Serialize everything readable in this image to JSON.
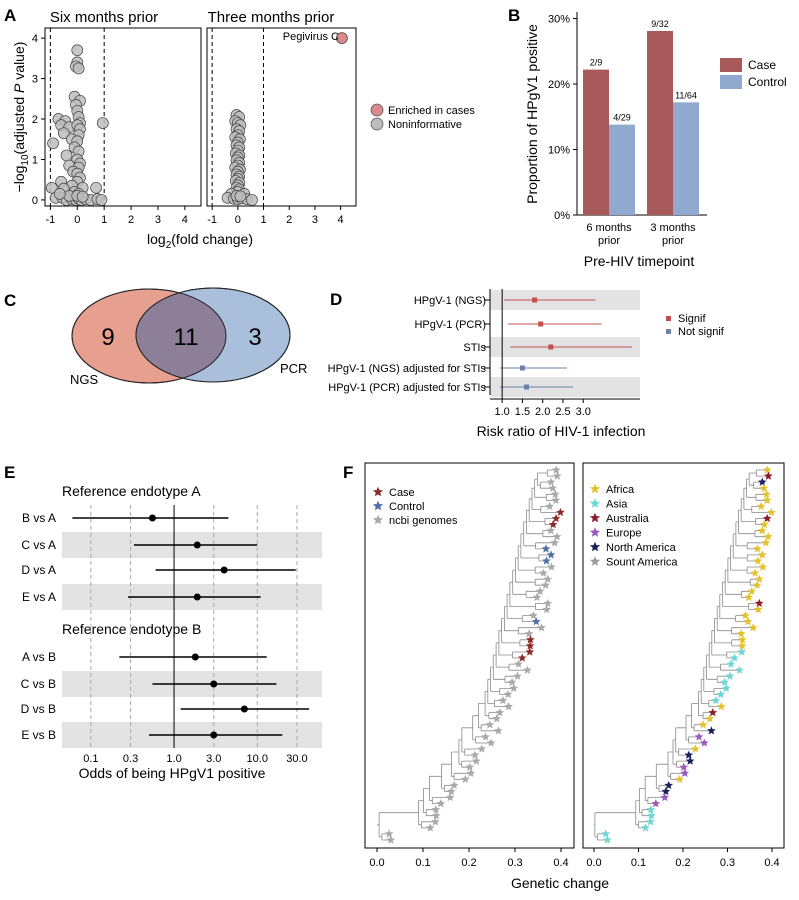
{
  "panel_letters": [
    "A",
    "B",
    "C",
    "D",
    "E",
    "F"
  ],
  "colors": {
    "case": "#a85a5a",
    "control": "#8fa9cf",
    "enriched": "#d98a8a",
    "noninformative": "#bdbdbd",
    "signif": "#c0504d",
    "not_signif": "#6b7fa8",
    "band": "#e3e3e3",
    "venn_ngs": "#e7a08f",
    "venn_pcr": "#a9bfdc",
    "venn_overlap": "#8e7f99",
    "tree_line": "#8a8a8a"
  },
  "chart_data": [
    {
      "panel": "A",
      "type": "scatter",
      "facets": [
        "Six months prior",
        "Three months prior"
      ],
      "xlabel": "log2(fold change)",
      "ylabel": "−log10(adjusted P value)",
      "xticks": [
        "-1",
        "0",
        "1",
        "2",
        "3",
        "4"
      ],
      "yticks": [
        "0",
        "1",
        "2",
        "3",
        "4"
      ],
      "xlim": [
        -1.2,
        4.6
      ],
      "ylim": [
        -0.15,
        4.25
      ],
      "vlines": [
        -1,
        1
      ],
      "legend": [
        "Enriched in cases",
        "Noninformative"
      ],
      "annotation": "Pegivirus C",
      "six_months": [
        [
          0.0,
          3.7
        ],
        [
          0.0,
          3.4
        ],
        [
          -0.05,
          3.3
        ],
        [
          0.05,
          3.25
        ],
        [
          -0.1,
          2.55
        ],
        [
          0.1,
          2.45
        ],
        [
          -0.05,
          2.35
        ],
        [
          0.0,
          2.2
        ],
        [
          -0.7,
          2.0
        ],
        [
          -0.45,
          1.95
        ],
        [
          0.05,
          2.05
        ],
        [
          0.1,
          1.9
        ],
        [
          -0.6,
          1.85
        ],
        [
          -0.3,
          1.8
        ],
        [
          0.0,
          1.85
        ],
        [
          0.1,
          1.75
        ],
        [
          -0.5,
          1.65
        ],
        [
          0.05,
          1.6
        ],
        [
          0.95,
          1.9
        ],
        [
          -0.2,
          1.5
        ],
        [
          0.0,
          1.45
        ],
        [
          -0.9,
          1.4
        ],
        [
          -0.1,
          1.3
        ],
        [
          0.05,
          1.2
        ],
        [
          -0.4,
          1.1
        ],
        [
          0.0,
          1.0
        ],
        [
          0.1,
          0.9
        ],
        [
          -0.3,
          0.85
        ],
        [
          0.05,
          0.8
        ],
        [
          -0.15,
          0.7
        ],
        [
          0.0,
          0.65
        ],
        [
          0.1,
          0.55
        ],
        [
          -0.6,
          0.45
        ],
        [
          0.0,
          0.45
        ],
        [
          -0.2,
          0.35
        ],
        [
          -0.95,
          0.3
        ],
        [
          -0.5,
          0.28
        ],
        [
          0.2,
          0.3
        ],
        [
          0.7,
          0.3
        ],
        [
          -0.1,
          0.2
        ],
        [
          0.05,
          0.15
        ],
        [
          -0.8,
          0.05
        ],
        [
          -0.55,
          0.05
        ],
        [
          -0.4,
          0.0
        ],
        [
          -0.2,
          0.02
        ],
        [
          -0.05,
          0.0
        ],
        [
          0.05,
          0.03
        ],
        [
          0.15,
          0.0
        ],
        [
          0.3,
          0.02
        ],
        [
          0.5,
          0.0
        ],
        [
          0.75,
          0.02
        ],
        [
          0.9,
          0.0
        ],
        [
          -0.3,
          0.1
        ],
        [
          0.0,
          0.1
        ],
        [
          0.2,
          0.08
        ],
        [
          -0.65,
          0.15
        ]
      ],
      "three_months": [
        [
          -0.05,
          2.1
        ],
        [
          0.05,
          2.05
        ],
        [
          -0.1,
          1.95
        ],
        [
          0.0,
          1.9
        ],
        [
          0.1,
          1.85
        ],
        [
          -0.05,
          1.75
        ],
        [
          0.05,
          1.7
        ],
        [
          0.0,
          1.6
        ],
        [
          -0.1,
          1.55
        ],
        [
          0.08,
          1.5
        ],
        [
          0.0,
          1.42
        ],
        [
          -0.05,
          1.35
        ],
        [
          0.05,
          1.3
        ],
        [
          0.0,
          1.22
        ],
        [
          -0.08,
          1.15
        ],
        [
          0.06,
          1.1
        ],
        [
          0.0,
          1.05
        ],
        [
          -0.05,
          0.98
        ],
        [
          0.05,
          0.92
        ],
        [
          0.0,
          0.85
        ],
        [
          -0.1,
          0.8
        ],
        [
          0.08,
          0.75
        ],
        [
          0.0,
          0.7
        ],
        [
          -0.05,
          0.63
        ],
        [
          0.05,
          0.58
        ],
        [
          0.0,
          0.52
        ],
        [
          -0.08,
          0.47
        ],
        [
          0.06,
          0.42
        ],
        [
          0.0,
          0.36
        ],
        [
          -0.05,
          0.3
        ],
        [
          0.05,
          0.26
        ],
        [
          0.0,
          0.2
        ],
        [
          -0.25,
          0.15
        ],
        [
          0.25,
          0.15
        ],
        [
          -0.4,
          0.05
        ],
        [
          -0.15,
          0.03
        ],
        [
          0.0,
          0.02
        ],
        [
          0.15,
          0.04
        ],
        [
          0.35,
          0.02
        ],
        [
          0.55,
          0.0
        ],
        [
          -0.05,
          0.1
        ],
        [
          0.1,
          0.09
        ]
      ],
      "enriched_point": [
        4.05,
        4.0
      ]
    },
    {
      "panel": "B",
      "type": "bar",
      "categories": [
        "6 months prior",
        "3 months prior"
      ],
      "category_lines": [
        [
          "6 months",
          "prior"
        ],
        [
          "3 months",
          "prior"
        ]
      ],
      "series": [
        {
          "name": "Case",
          "values": [
            22.2,
            28.1
          ],
          "labels": [
            "2/9",
            "9/32"
          ]
        },
        {
          "name": "Control",
          "values": [
            13.8,
            17.2
          ],
          "labels": [
            "4/29",
            "11/64"
          ]
        }
      ],
      "ylabel": "Proportion of HPgV1 positive",
      "xlabel": "Pre-HIV timepoint",
      "yticks": [
        "0%",
        "10%",
        "20%",
        "30%"
      ],
      "ylim": [
        0,
        31
      ]
    },
    {
      "panel": "C",
      "type": "venn",
      "sets": [
        "NGS",
        "PCR"
      ],
      "values": {
        "ngs_only": "9",
        "overlap": "11",
        "pcr_only": "3"
      }
    },
    {
      "panel": "D",
      "type": "forest",
      "rows": [
        {
          "label": "HPgV-1 (NGS)",
          "est": 1.8,
          "lo": 1.05,
          "hi": 3.3,
          "signif": true
        },
        {
          "label": "HPgV-1 (PCR)",
          "est": 1.95,
          "lo": 1.15,
          "hi": 3.45,
          "signif": true
        },
        {
          "label": "STIs",
          "est": 2.2,
          "lo": 1.2,
          "hi": 4.2,
          "signif": true
        },
        {
          "label": "HPgV-1 (NGS) adjusted for STIs",
          "est": 1.5,
          "lo": 0.95,
          "hi": 2.6,
          "signif": false
        },
        {
          "label": "HPgV-1 (PCR) adjusted for STIs",
          "est": 1.6,
          "lo": 0.95,
          "hi": 2.75,
          "signif": false
        }
      ],
      "xticks": [
        "1.0",
        "1.5",
        "2.0",
        "2.5",
        "3.0"
      ],
      "xlabel": "Risk ratio of HIV-1 infection",
      "legend": [
        "Signif",
        "Not signif"
      ],
      "xlim": [
        0.7,
        4.4
      ],
      "ref": 1.0
    },
    {
      "panel": "E",
      "type": "forest",
      "groups": [
        {
          "title": "Reference endotype A",
          "rows": [
            {
              "label": "B vs A",
              "est": 0.55,
              "lo": 0.06,
              "hi": 4.5
            },
            {
              "label": "C vs A",
              "est": 1.9,
              "lo": 0.33,
              "hi": 10.0
            },
            {
              "label": "D vs A",
              "est": 4.0,
              "lo": 0.6,
              "hi": 29.0
            },
            {
              "label": "E vs A",
              "est": 1.9,
              "lo": 0.28,
              "hi": 11.0
            }
          ]
        },
        {
          "title": "Reference endotype B",
          "rows": [
            {
              "label": "A vs B",
              "est": 1.8,
              "lo": 0.22,
              "hi": 13.0
            },
            {
              "label": "C vs B",
              "est": 3.0,
              "lo": 0.55,
              "hi": 17.0
            },
            {
              "label": "D vs B",
              "est": 7.0,
              "lo": 1.2,
              "hi": 42.0
            },
            {
              "label": "E vs B",
              "est": 3.0,
              "lo": 0.5,
              "hi": 20.0
            }
          ]
        }
      ],
      "xticks": [
        "0.1",
        "0.3",
        "1.0",
        "3.0",
        "10.0",
        "30.0"
      ],
      "xlabel": "Odds of being HPgV1 positive",
      "xlim": [
        0.045,
        60
      ],
      "scale": "log",
      "ref": 1.0
    },
    {
      "panel": "F",
      "type": "phylogenetic-tree",
      "xlabel": "Genetic change",
      "xticks": [
        "0.0",
        "0.1",
        "0.2",
        "0.3",
        "0.4"
      ],
      "legend_left": [
        {
          "name": "Case",
          "color": "#8e2a2a"
        },
        {
          "name": "Control",
          "color": "#4f6fa6"
        },
        {
          "name": "ncbi genomes",
          "color": "#a9a9a9"
        }
      ],
      "legend_right": [
        {
          "name": "Africa",
          "color": "#e6c22a"
        },
        {
          "name": "Asia",
          "color": "#6fd6d6"
        },
        {
          "name": "Australia",
          "color": "#8e1a2a"
        },
        {
          "name": "Europe",
          "color": "#9b59c0"
        },
        {
          "name": "North America",
          "color": "#1a1f5a"
        },
        {
          "name": "Sount America",
          "color": "#9a9a9a"
        }
      ]
    }
  ]
}
